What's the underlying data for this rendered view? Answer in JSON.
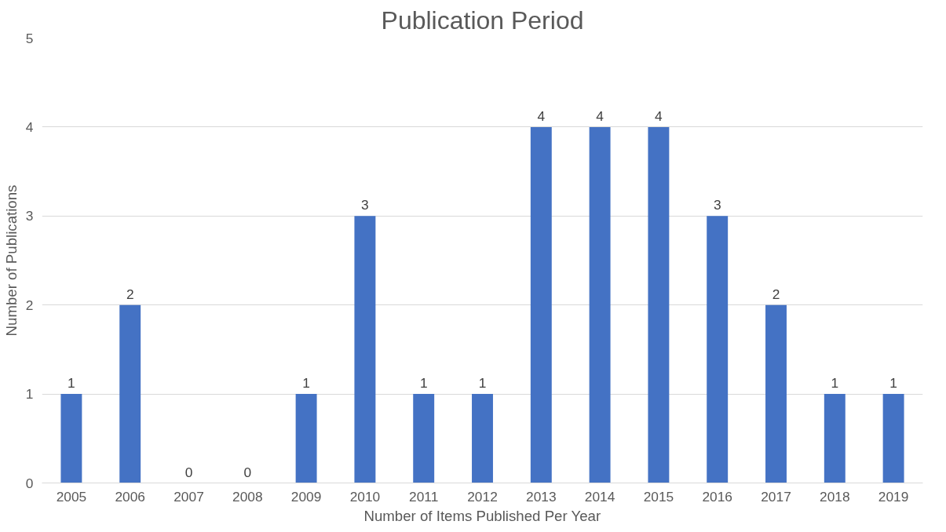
{
  "chart_data": {
    "type": "bar",
    "title": "Publication Period",
    "xlabel": "Number of Items Published Per Year",
    "ylabel": "Number of Publications",
    "categories": [
      "2005",
      "2006",
      "2007",
      "2008",
      "2009",
      "2010",
      "2011",
      "2012",
      "2013",
      "2014",
      "2015",
      "2016",
      "2017",
      "2018",
      "2019"
    ],
    "values": [
      1,
      2,
      0,
      0,
      1,
      3,
      1,
      1,
      4,
      4,
      4,
      3,
      2,
      1,
      1
    ],
    "color": "#4472c4",
    "ylim": [
      0,
      5
    ],
    "yticks": [
      0,
      1,
      2,
      3,
      4,
      5
    ],
    "grid": "y",
    "data_labels": true
  }
}
